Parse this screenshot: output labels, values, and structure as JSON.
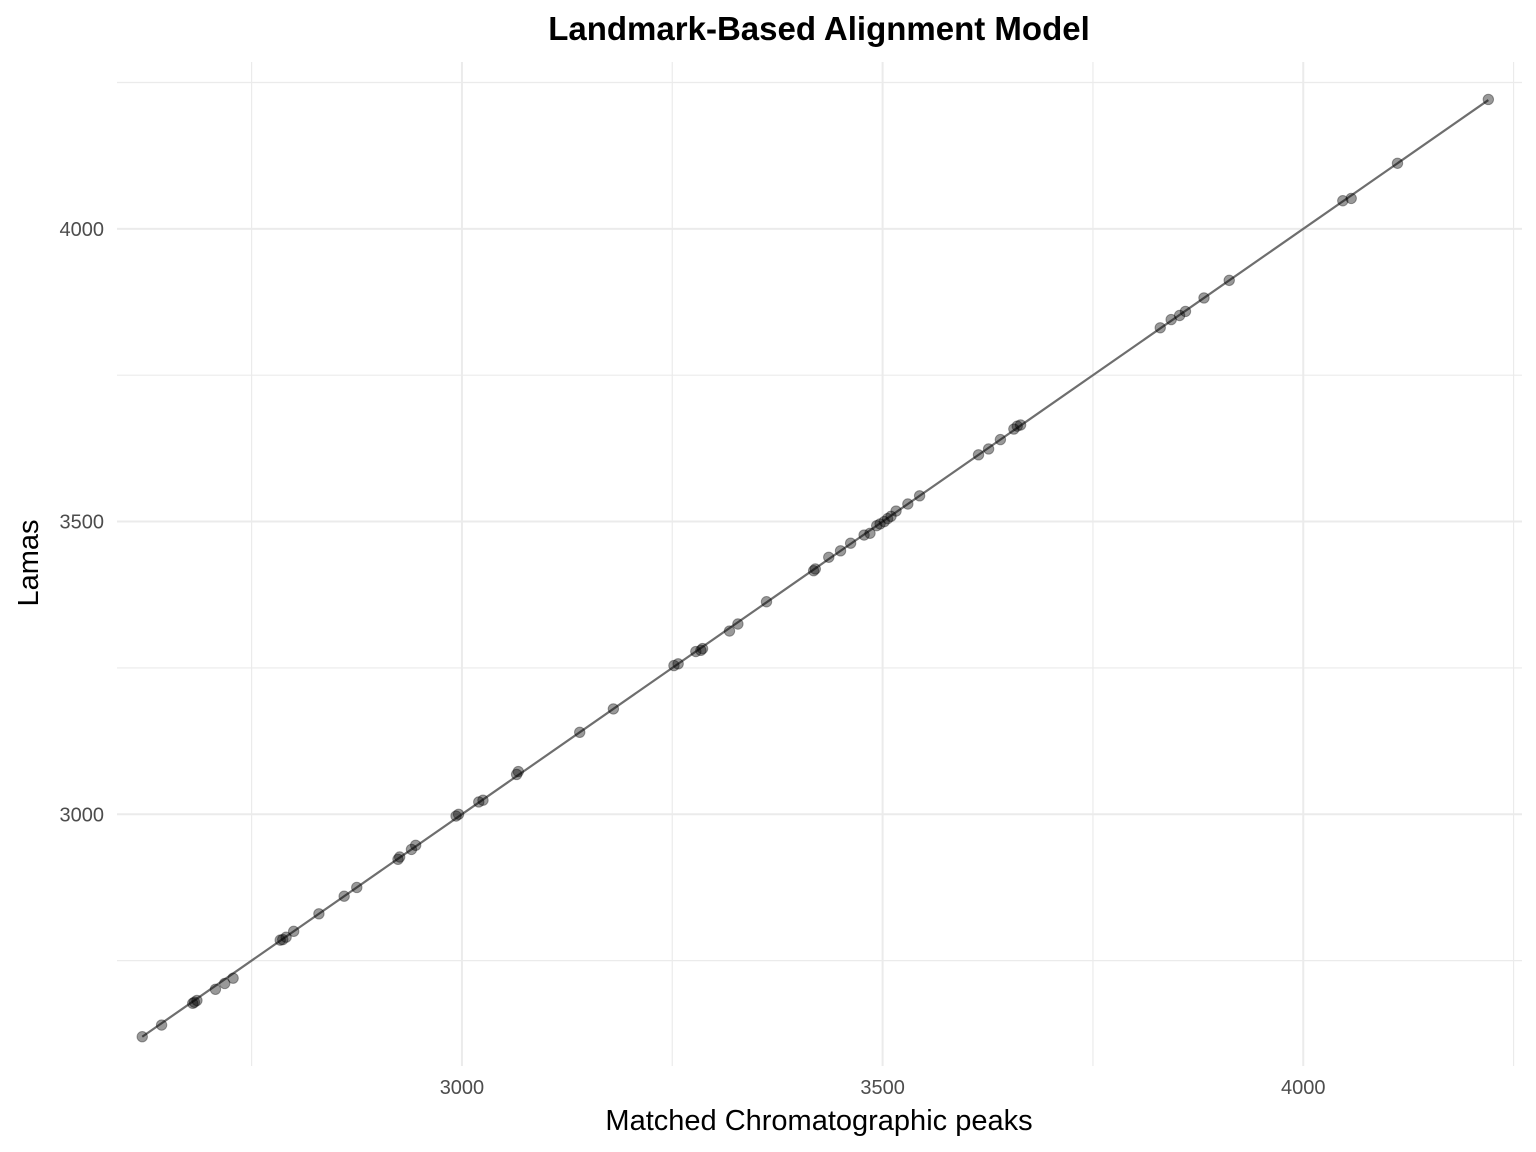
{
  "chart_data": {
    "type": "scatter",
    "title": "Landmark-Based Alignment Model",
    "xlabel": "Matched Chromatographic peaks",
    "ylabel": "Lamas",
    "xlim": [
      2590,
      4260
    ],
    "ylim": [
      2570,
      4285
    ],
    "x_ticks": [
      3000,
      3500,
      4000
    ],
    "y_ticks": [
      3000,
      3500,
      4000
    ],
    "x_minor_ticks": [
      2750,
      3250,
      3750,
      4250
    ],
    "y_minor_ticks": [
      2750,
      3250,
      3750,
      4250
    ],
    "grid": true,
    "legend": "none",
    "point_color": "#000000",
    "point_alpha": 0.4,
    "line_color": "#6e6e6e",
    "fit_line": {
      "x": [
        2620,
        4220
      ],
      "y": [
        2620,
        4220
      ]
    },
    "series": [
      {
        "values": [
          [
            2620,
            2620
          ],
          [
            2643,
            2640
          ],
          [
            2680,
            2677
          ],
          [
            2682,
            2679
          ],
          [
            2685,
            2682
          ],
          [
            2707,
            2701
          ],
          [
            2718,
            2711
          ],
          [
            2728,
            2720
          ],
          [
            2784,
            2785
          ],
          [
            2787,
            2786
          ],
          [
            2791,
            2790
          ],
          [
            2800,
            2800
          ],
          [
            2830,
            2830
          ],
          [
            2860,
            2860
          ],
          [
            2875,
            2875
          ],
          [
            2924,
            2923
          ],
          [
            2926,
            2927
          ],
          [
            2940,
            2940
          ],
          [
            2945,
            2947
          ],
          [
            2993,
            2997
          ],
          [
            2996,
            3000
          ],
          [
            3020,
            3021
          ],
          [
            3025,
            3024
          ],
          [
            3065,
            3068
          ],
          [
            3067,
            3073
          ],
          [
            3140,
            3140
          ],
          [
            3180,
            3180
          ],
          [
            3252,
            3254
          ],
          [
            3257,
            3257
          ],
          [
            3278,
            3278
          ],
          [
            3284,
            3280
          ],
          [
            3286,
            3283
          ],
          [
            3318,
            3313
          ],
          [
            3328,
            3325
          ],
          [
            3362,
            3363
          ],
          [
            3418,
            3416
          ],
          [
            3420,
            3419
          ],
          [
            3436,
            3439
          ],
          [
            3450,
            3450
          ],
          [
            3462,
            3463
          ],
          [
            3478,
            3477
          ],
          [
            3485,
            3480
          ],
          [
            3493,
            3493
          ],
          [
            3497,
            3496
          ],
          [
            3502,
            3500
          ],
          [
            3506,
            3505
          ],
          [
            3510,
            3509
          ],
          [
            3516,
            3518
          ],
          [
            3530,
            3530
          ],
          [
            3544,
            3544
          ],
          [
            3614,
            3614
          ],
          [
            3626,
            3624
          ],
          [
            3640,
            3640
          ],
          [
            3656,
            3658
          ],
          [
            3660,
            3663
          ],
          [
            3664,
            3665
          ],
          [
            3830,
            3831
          ],
          [
            3843,
            3845
          ],
          [
            3853,
            3852
          ],
          [
            3860,
            3859
          ],
          [
            3882,
            3882
          ],
          [
            3912,
            3912
          ],
          [
            4047,
            4048
          ],
          [
            4057,
            4052
          ],
          [
            4112,
            4112
          ],
          [
            4220,
            4221
          ]
        ]
      }
    ]
  }
}
